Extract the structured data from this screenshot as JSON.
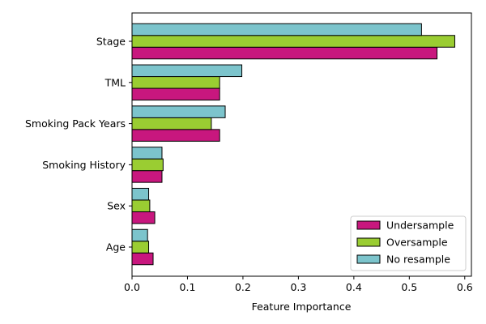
{
  "chart_data": {
    "type": "bar",
    "orientation": "horizontal",
    "categories": [
      "Stage",
      "TML",
      "Smoking Pack Years",
      "Smoking History",
      "Sex",
      "Age"
    ],
    "series": [
      {
        "name": "Undersample",
        "color": "#c8177e",
        "values": [
          0.55,
          0.158,
          0.158,
          0.054,
          0.041,
          0.038
        ]
      },
      {
        "name": "Oversample",
        "color": "#9acd32",
        "values": [
          0.582,
          0.158,
          0.143,
          0.056,
          0.032,
          0.03
        ]
      },
      {
        "name": "No resample",
        "color": "#7cc4cc",
        "values": [
          0.522,
          0.198,
          0.168,
          0.054,
          0.03,
          0.028
        ]
      }
    ],
    "xlabel": "Feature Importance",
    "ylabel": "",
    "xlim": [
      0,
      0.612
    ],
    "xticks": [
      0,
      0.1,
      0.2,
      0.3,
      0.4,
      0.5,
      0.6
    ],
    "xtick_labels": [
      "0.0",
      "0.1",
      "0.2",
      "0.3",
      "0.4",
      "0.5",
      "0.6"
    ],
    "grid": false,
    "legend_position": "lower-right"
  }
}
